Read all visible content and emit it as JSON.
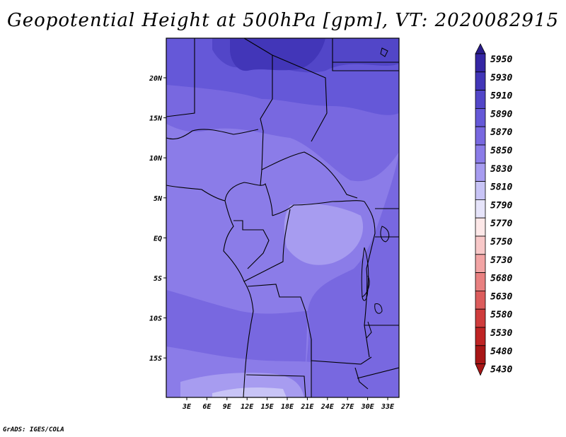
{
  "title": "Geopotential Height at 500hPa [gpm], VT: 2020082915",
  "credit": "GrADS: IGES/COLA",
  "map": {
    "lat_ticks": [
      "20N",
      "15N",
      "10N",
      "5N",
      "EQ",
      "5S",
      "10S",
      "15S"
    ],
    "lon_ticks": [
      "3E",
      "6E",
      "9E",
      "12E",
      "15E",
      "18E",
      "21E",
      "24E",
      "27E",
      "30E",
      "33E"
    ]
  },
  "colorbar": {
    "levels": [
      "5950",
      "5930",
      "5910",
      "5890",
      "5870",
      "5850",
      "5830",
      "5810",
      "5790",
      "5770",
      "5750",
      "5730",
      "5680",
      "5630",
      "5580",
      "5530",
      "5480",
      "5430"
    ],
    "colors": [
      "#2a1c8a",
      "#3526a4",
      "#4236b8",
      "#5246c8",
      "#6558d8",
      "#7868e0",
      "#8b7ce8",
      "#a79cf0",
      "#c8c4f6",
      "#e6e4fa",
      "#fde8e8",
      "#f8c8c8",
      "#f2a4a4",
      "#e88080",
      "#dc5c5c",
      "#cf3c3c",
      "#bf2424",
      "#a81616"
    ]
  }
}
